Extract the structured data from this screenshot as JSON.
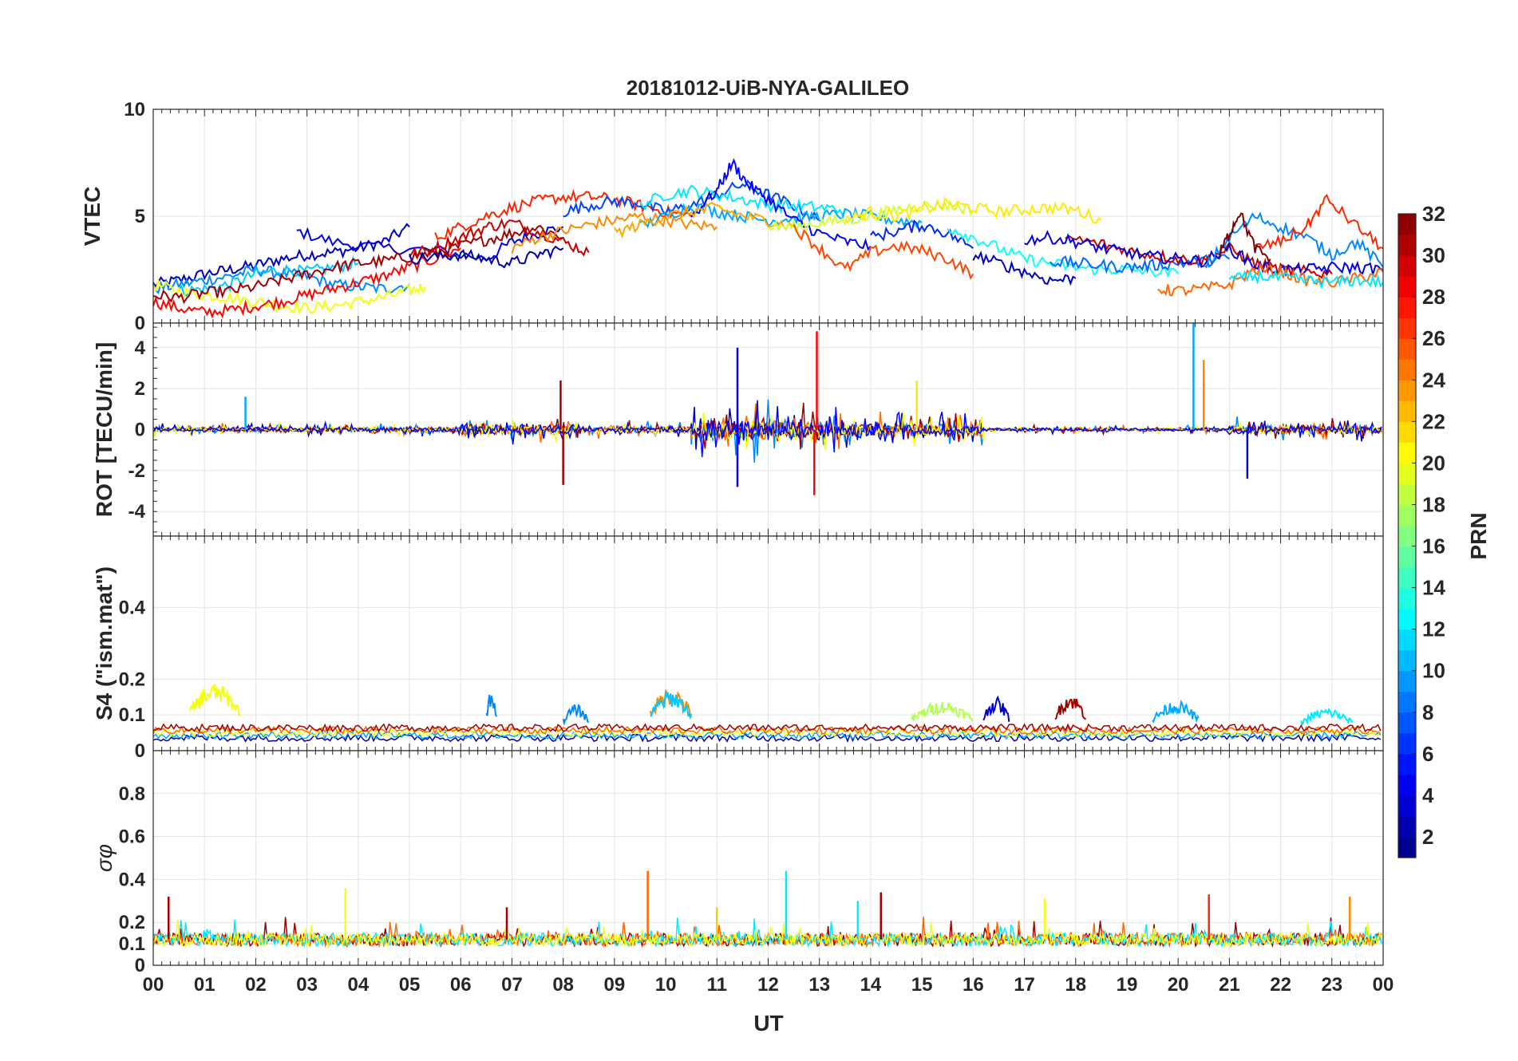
{
  "figure": {
    "title": "20181012-UiB-NYA-GALILEO",
    "x_label": "UT",
    "x_ticks": [
      "00",
      "01",
      "02",
      "03",
      "04",
      "05",
      "06",
      "07",
      "08",
      "09",
      "10",
      "11",
      "12",
      "13",
      "14",
      "15",
      "16",
      "17",
      "18",
      "19",
      "20",
      "21",
      "22",
      "23",
      "00"
    ]
  },
  "colorbar": {
    "label": "PRN",
    "colormap": "jet",
    "ticks": [
      "2",
      "4",
      "6",
      "8",
      "10",
      "12",
      "14",
      "16",
      "18",
      "20",
      "22",
      "24",
      "26",
      "28",
      "30",
      "32"
    ],
    "range": [
      1,
      32
    ]
  },
  "chart_data": [
    {
      "type": "line",
      "panel": "vtec",
      "ylabel": "VTEC",
      "ylim": [
        0,
        10
      ],
      "yticks": [
        0,
        5,
        10
      ],
      "xlim": [
        0,
        24
      ],
      "grid": true,
      "series": [
        {
          "prn": 3,
          "x": [
            0,
            0.5,
            1,
            1.5,
            2,
            2.5,
            3,
            3.5,
            4,
            4.5,
            5
          ],
          "y": [
            1.8,
            2.0,
            2.3,
            2.5,
            2.7,
            3.0,
            3.2,
            3.3,
            3.5,
            3.8,
            4.5
          ]
        },
        {
          "prn": 4,
          "x": [
            2.8,
            3.5,
            4.5,
            5.5,
            6.5,
            7,
            7.5,
            8
          ],
          "y": [
            4.3,
            3.8,
            3.5,
            3.4,
            3.0,
            3.8,
            4.2,
            4.5
          ]
        },
        {
          "prn": 9,
          "x": [
            0,
            0.5,
            1,
            1.5,
            2,
            2.5,
            3,
            3.5,
            4,
            4.5,
            5
          ],
          "y": [
            1.6,
            1.8,
            2.0,
            2.2,
            2.5,
            2.3,
            2.2,
            1.8,
            1.7,
            1.6,
            1.8
          ]
        },
        {
          "prn": 11,
          "x": [
            0.5,
            1,
            1.5,
            2,
            2.5,
            3,
            3.5,
            4
          ],
          "y": [
            1.5,
            1.6,
            1.8,
            2.3,
            2.5,
            2.4,
            2.6,
            2.8
          ]
        },
        {
          "prn": 20,
          "x": [
            0,
            0.5,
            1,
            1.5,
            2,
            2.5,
            3,
            3.5,
            4,
            4.5,
            5,
            5.3
          ],
          "y": [
            1.8,
            1.5,
            1.3,
            1.2,
            1.0,
            0.8,
            0.7,
            0.8,
            1.0,
            1.2,
            1.5,
            1.7
          ]
        },
        {
          "prn": 28,
          "x": [
            0,
            0.5,
            1,
            1.5,
            2,
            2.5,
            3,
            3.5,
            4,
            4.5,
            5,
            5.5,
            6
          ],
          "y": [
            1.0,
            0.7,
            0.5,
            0.6,
            0.8,
            1.0,
            1.3,
            1.6,
            1.9,
            2.2,
            2.6,
            3.0,
            3.5
          ]
        },
        {
          "prn": 31,
          "x": [
            0,
            0.5,
            1,
            1.5,
            2,
            2.5,
            3,
            3.5,
            4,
            4.5,
            5,
            5.5,
            6,
            6.5,
            7,
            7.5,
            8
          ],
          "y": [
            1.3,
            1.2,
            1.4,
            1.5,
            1.7,
            2.0,
            2.3,
            2.6,
            2.8,
            2.9,
            3.1,
            3.3,
            3.6,
            3.9,
            4.2,
            4.5,
            4.0
          ]
        },
        {
          "prn": 30,
          "x": [
            5,
            5.5,
            6,
            6.5,
            7,
            7.5,
            8,
            8.5
          ],
          "y": [
            3.2,
            3.5,
            4.0,
            4.5,
            4.7,
            4.3,
            3.8,
            3.3
          ]
        },
        {
          "prn": 2,
          "x": [
            5,
            5.5,
            6,
            6.5,
            7,
            7.5,
            8
          ],
          "y": [
            3.0,
            3.1,
            3.2,
            3.0,
            2.8,
            3.2,
            3.5
          ]
        },
        {
          "prn": 27,
          "x": [
            5.5,
            6,
            6.5,
            7,
            7.5,
            8,
            8.5,
            9,
            9.5,
            10,
            10.5
          ],
          "y": [
            4.0,
            4.5,
            5.0,
            5.4,
            5.7,
            5.9,
            5.9,
            5.8,
            5.5,
            5.2,
            5.0
          ]
        },
        {
          "prn": 24,
          "x": [
            7,
            7.5,
            8,
            8.5,
            9,
            9.5,
            10,
            10.5,
            11
          ],
          "y": [
            3.5,
            4.0,
            4.3,
            4.6,
            4.8,
            5.0,
            4.8,
            4.6,
            4.5
          ]
        },
        {
          "prn": 7,
          "x": [
            8,
            8.5,
            9,
            9.5,
            10,
            10.5,
            11,
            11.5,
            12,
            12.5,
            13
          ],
          "y": [
            5.2,
            5.5,
            5.7,
            5.6,
            5.2,
            5.5,
            6.0,
            6.5,
            6.0,
            5.5,
            4.8
          ]
        },
        {
          "prn": 12,
          "x": [
            9.5,
            10,
            10.5,
            11,
            11.5,
            12,
            12.5,
            13,
            13.5
          ],
          "y": [
            5.5,
            6.0,
            6.2,
            6.0,
            5.8,
            5.5,
            5.5,
            5.4,
            5.3
          ]
        },
        {
          "prn": 10,
          "x": [
            9.5,
            10,
            10.5,
            11,
            11.5,
            12,
            12.5,
            13,
            13.5,
            14,
            14.5,
            15
          ],
          "y": [
            4.5,
            5.0,
            5.5,
            5.2,
            5.0,
            4.8,
            4.9,
            5.0,
            5.1,
            5.0,
            4.8,
            4.7
          ]
        },
        {
          "prn": 5,
          "x": [
            10.5,
            11,
            11.3,
            11.6,
            12,
            12.5,
            13,
            13.5,
            14
          ],
          "y": [
            5.0,
            6.2,
            7.5,
            6.5,
            5.8,
            4.8,
            4.2,
            3.8,
            3.6
          ]
        },
        {
          "prn": 23,
          "x": [
            9,
            9.5,
            10,
            10.5,
            11,
            11.5,
            12,
            12.5
          ],
          "y": [
            4.2,
            4.6,
            5.0,
            5.2,
            5.4,
            5.0,
            4.8,
            4.5
          ]
        },
        {
          "prn": 19,
          "x": [
            12,
            12.5,
            13,
            13.5,
            14,
            14.5,
            15,
            15.5,
            16
          ],
          "y": [
            4.5,
            4.5,
            4.7,
            4.8,
            5.0,
            5.3,
            5.5,
            5.5,
            5.3
          ]
        },
        {
          "prn": 21,
          "x": [
            13.5,
            14,
            14.5,
            15,
            15.5,
            16,
            16.5,
            17,
            17.5,
            18,
            18.5
          ],
          "y": [
            4.8,
            5.2,
            5.0,
            5.3,
            5.6,
            5.4,
            5.2,
            5.3,
            5.4,
            5.3,
            4.8
          ]
        },
        {
          "prn": 26,
          "x": [
            12.5,
            13,
            13.5,
            14,
            14.5,
            15,
            15.5,
            16
          ],
          "y": [
            4.5,
            3.5,
            2.5,
            3.3,
            3.6,
            3.4,
            3.0,
            2.3
          ]
        },
        {
          "prn": 6,
          "x": [
            14,
            14.5,
            15,
            15.5,
            16
          ],
          "y": [
            4.0,
            4.3,
            4.6,
            4.2,
            3.5
          ]
        },
        {
          "prn": 13,
          "x": [
            15.5,
            16,
            16.5,
            17,
            17.5,
            18,
            18.5,
            19,
            19.5,
            20
          ],
          "y": [
            4.5,
            4.0,
            3.5,
            3.0,
            2.8,
            2.6,
            2.5,
            2.5,
            2.4,
            2.3
          ]
        },
        {
          "prn": 3,
          "x": [
            16,
            16.5,
            17,
            17.5,
            18
          ],
          "y": [
            3.2,
            2.8,
            2.4,
            2.0,
            2.1
          ]
        },
        {
          "prn": 8,
          "x": [
            17.5,
            18,
            18.5,
            19,
            19.5,
            20,
            20.5,
            21
          ],
          "y": [
            2.9,
            2.8,
            2.7,
            2.6,
            2.7,
            2.8,
            2.9,
            3.0
          ]
        },
        {
          "prn": 30,
          "x": [
            17.8,
            18.5,
            19,
            19.5,
            20,
            20.5,
            21,
            21.5,
            22,
            22.5,
            23
          ],
          "y": [
            4.0,
            3.7,
            3.4,
            3.2,
            3.0,
            2.9,
            3.5,
            2.8,
            2.5,
            2.4,
            2.3
          ]
        },
        {
          "prn": 4,
          "x": [
            17,
            17.5,
            18,
            18.5,
            19,
            19.5,
            20,
            20.5,
            21,
            21.5,
            22,
            22.5,
            23,
            23.5,
            24
          ],
          "y": [
            3.9,
            4.0,
            3.8,
            3.5,
            3.3,
            3.1,
            3.0,
            2.9,
            3.5,
            2.7,
            2.5,
            2.5,
            2.6,
            2.6,
            2.5
          ]
        },
        {
          "prn": 9,
          "x": [
            20.5,
            21,
            21.5,
            22,
            22.5,
            23,
            23.5,
            24
          ],
          "y": [
            2.5,
            4.0,
            5.0,
            4.5,
            4.0,
            3.2,
            3.8,
            2.6
          ]
        },
        {
          "prn": 25,
          "x": [
            19.6,
            20,
            20.5,
            21,
            21.5,
            22,
            22.5,
            23,
            23.5,
            24
          ],
          "y": [
            1.6,
            1.5,
            1.6,
            1.8,
            2.5,
            2.4,
            2.0,
            1.9,
            2.1,
            2.4
          ]
        },
        {
          "prn": 27,
          "x": [
            21.5,
            22,
            22.5,
            22.9,
            23.5,
            24
          ],
          "y": [
            3.5,
            3.8,
            4.5,
            5.8,
            4.5,
            3.5
          ]
        },
        {
          "prn": 12,
          "x": [
            21,
            21.5,
            22,
            22.5,
            23,
            23.5,
            24
          ],
          "y": [
            2.0,
            2.2,
            2.1,
            2.0,
            1.9,
            2.0,
            1.9
          ]
        },
        {
          "prn": 32,
          "x": [
            20.8,
            21,
            21.2,
            21.5,
            21.8
          ],
          "y": [
            3.2,
            4.2,
            5.2,
            3.5,
            3.0
          ]
        }
      ]
    },
    {
      "type": "line",
      "panel": "rot",
      "ylabel": "ROT [TECU/min]",
      "ylim": [
        -5.2,
        5.2
      ],
      "yticks": [
        -4,
        -2,
        0,
        2,
        4
      ],
      "xlim": [
        0,
        24
      ],
      "grid": true,
      "noise_segments": [
        {
          "start": 0,
          "end": 6,
          "amplitude": 0.4
        },
        {
          "start": 6,
          "end": 8.3,
          "amplitude": 0.9
        },
        {
          "start": 8.3,
          "end": 10.5,
          "amplitude": 0.5
        },
        {
          "start": 10.5,
          "end": 13.5,
          "amplitude": 1.8
        },
        {
          "start": 13.5,
          "end": 16.2,
          "amplitude": 1.1
        },
        {
          "start": 16.2,
          "end": 21,
          "amplitude": 0.25
        },
        {
          "start": 21,
          "end": 24,
          "amplitude": 0.7
        }
      ],
      "spikes": [
        {
          "x": 7.95,
          "y": 2.4,
          "prn": 31
        },
        {
          "x": 8.0,
          "y": -2.7,
          "prn": 31
        },
        {
          "x": 11.4,
          "y": 4.0,
          "prn": 5
        },
        {
          "x": 11.4,
          "y": -2.8,
          "prn": 5
        },
        {
          "x": 12.95,
          "y": 4.8,
          "prn": 28
        },
        {
          "x": 12.9,
          "y": -3.2,
          "prn": 28
        },
        {
          "x": 20.3,
          "y": 5.2,
          "prn": 10
        },
        {
          "x": 20.5,
          "y": 3.4,
          "prn": 24
        },
        {
          "x": 21.35,
          "y": -2.4,
          "prn": 5
        },
        {
          "x": 1.8,
          "y": 1.6,
          "prn": 10
        },
        {
          "x": 14.9,
          "y": 2.4,
          "prn": 21
        }
      ]
    },
    {
      "type": "line",
      "panel": "s4",
      "ylabel": "S4 (\"ism.mat\")",
      "ylim": [
        0,
        0.6
      ],
      "yticks": [
        0,
        0.1,
        0.2,
        0.4
      ],
      "xlim": [
        0,
        24
      ],
      "grid": true,
      "baseline": 0.05,
      "bumps": [
        {
          "start": 0.7,
          "end": 1.7,
          "peak": 0.19,
          "prn": 20
        },
        {
          "start": 6.5,
          "end": 6.7,
          "peak": 0.17,
          "prn": 9
        },
        {
          "start": 8.0,
          "end": 8.5,
          "peak": 0.13,
          "prn": 9
        },
        {
          "start": 9.7,
          "end": 10.5,
          "peak": 0.18,
          "prn": 24
        },
        {
          "start": 9.7,
          "end": 10.5,
          "peak": 0.17,
          "prn": 11
        },
        {
          "start": 14.8,
          "end": 16.0,
          "peak": 0.14,
          "prn": 18
        },
        {
          "start": 16.2,
          "end": 16.7,
          "peak": 0.15,
          "prn": 3
        },
        {
          "start": 17.6,
          "end": 18.2,
          "peak": 0.16,
          "prn": 31
        },
        {
          "start": 19.5,
          "end": 20.4,
          "peak": 0.14,
          "prn": 10
        },
        {
          "start": 22.4,
          "end": 23.4,
          "peak": 0.12,
          "prn": 12
        }
      ]
    },
    {
      "type": "line",
      "panel": "sigma_phi",
      "ylabel": "σφ",
      "ylim": [
        0,
        1
      ],
      "yticks": [
        0,
        0.1,
        0.2,
        0.4,
        0.6,
        0.8
      ],
      "xlim": [
        0,
        24
      ],
      "grid": true,
      "baseline": 0.12,
      "spikes": [
        {
          "x": 0.3,
          "y": 0.32,
          "prn": 31
        },
        {
          "x": 3.75,
          "y": 0.36,
          "prn": 20
        },
        {
          "x": 9.65,
          "y": 0.44,
          "prn": 25
        },
        {
          "x": 12.35,
          "y": 0.44,
          "prn": 12
        },
        {
          "x": 13.75,
          "y": 0.3,
          "prn": 12
        },
        {
          "x": 14.2,
          "y": 0.34,
          "prn": 31
        },
        {
          "x": 17.4,
          "y": 0.31,
          "prn": 20
        },
        {
          "x": 20.6,
          "y": 0.33,
          "prn": 27
        },
        {
          "x": 23.35,
          "y": 0.32,
          "prn": 24
        },
        {
          "x": 6.9,
          "y": 0.27,
          "prn": 31
        },
        {
          "x": 11.0,
          "y": 0.27,
          "prn": 22
        }
      ]
    }
  ]
}
